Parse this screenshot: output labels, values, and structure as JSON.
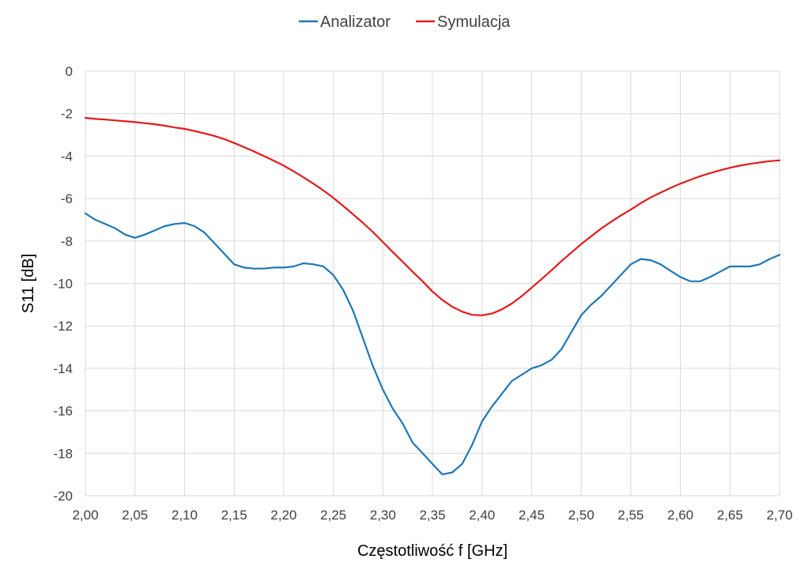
{
  "chart_data": {
    "type": "line",
    "title": "",
    "xlabel": "Częstotliwość f [GHz]",
    "ylabel": "S11 [dB]",
    "xlim": [
      2.0,
      2.7
    ],
    "ylim": [
      -20,
      0
    ],
    "x_ticks": [
      2.0,
      2.05,
      2.1,
      2.15,
      2.2,
      2.25,
      2.3,
      2.35,
      2.4,
      2.45,
      2.5,
      2.55,
      2.6,
      2.65,
      2.7
    ],
    "x_tick_labels": [
      "2,00",
      "2,05",
      "2,10",
      "2,15",
      "2,20",
      "2,25",
      "2,30",
      "2,35",
      "2,40",
      "2,45",
      "2,50",
      "2,55",
      "2,60",
      "2,65",
      "2,70"
    ],
    "y_ticks": [
      0,
      -2,
      -4,
      -6,
      -8,
      -10,
      -12,
      -14,
      -16,
      -18,
      -20
    ],
    "y_tick_labels": [
      "0",
      "-2",
      "-4",
      "-6",
      "-8",
      "-10",
      "-12",
      "-14",
      "-16",
      "-18",
      "-20"
    ],
    "grid": true,
    "legend_position": "top",
    "series": [
      {
        "name": "Analizator",
        "color": "#1f77b4",
        "points": [
          [
            2.0,
            -6.7
          ],
          [
            2.01,
            -7.0
          ],
          [
            2.02,
            -7.2
          ],
          [
            2.03,
            -7.4
          ],
          [
            2.04,
            -7.7
          ],
          [
            2.05,
            -7.85
          ],
          [
            2.06,
            -7.7
          ],
          [
            2.07,
            -7.5
          ],
          [
            2.08,
            -7.3
          ],
          [
            2.09,
            -7.2
          ],
          [
            2.1,
            -7.15
          ],
          [
            2.11,
            -7.3
          ],
          [
            2.12,
            -7.6
          ],
          [
            2.13,
            -8.1
          ],
          [
            2.14,
            -8.6
          ],
          [
            2.15,
            -9.1
          ],
          [
            2.16,
            -9.25
          ],
          [
            2.17,
            -9.3
          ],
          [
            2.18,
            -9.3
          ],
          [
            2.19,
            -9.25
          ],
          [
            2.2,
            -9.25
          ],
          [
            2.21,
            -9.2
          ],
          [
            2.22,
            -9.05
          ],
          [
            2.23,
            -9.1
          ],
          [
            2.24,
            -9.2
          ],
          [
            2.25,
            -9.6
          ],
          [
            2.26,
            -10.3
          ],
          [
            2.27,
            -11.3
          ],
          [
            2.28,
            -12.6
          ],
          [
            2.29,
            -13.9
          ],
          [
            2.3,
            -15.0
          ],
          [
            2.31,
            -15.9
          ],
          [
            2.32,
            -16.6
          ],
          [
            2.33,
            -17.5
          ],
          [
            2.34,
            -18.0
          ],
          [
            2.35,
            -18.5
          ],
          [
            2.36,
            -19.0
          ],
          [
            2.37,
            -18.9
          ],
          [
            2.38,
            -18.5
          ],
          [
            2.39,
            -17.6
          ],
          [
            2.4,
            -16.5
          ],
          [
            2.41,
            -15.8
          ],
          [
            2.42,
            -15.2
          ],
          [
            2.43,
            -14.6
          ],
          [
            2.44,
            -14.3
          ],
          [
            2.45,
            -14.0
          ],
          [
            2.46,
            -13.85
          ],
          [
            2.47,
            -13.6
          ],
          [
            2.48,
            -13.1
          ],
          [
            2.49,
            -12.3
          ],
          [
            2.5,
            -11.5
          ],
          [
            2.51,
            -11.0
          ],
          [
            2.52,
            -10.6
          ],
          [
            2.53,
            -10.1
          ],
          [
            2.54,
            -9.6
          ],
          [
            2.55,
            -9.1
          ],
          [
            2.56,
            -8.85
          ],
          [
            2.57,
            -8.9
          ],
          [
            2.58,
            -9.1
          ],
          [
            2.59,
            -9.4
          ],
          [
            2.6,
            -9.7
          ],
          [
            2.61,
            -9.9
          ],
          [
            2.62,
            -9.9
          ],
          [
            2.63,
            -9.7
          ],
          [
            2.64,
            -9.45
          ],
          [
            2.65,
            -9.2
          ],
          [
            2.66,
            -9.2
          ],
          [
            2.67,
            -9.2
          ],
          [
            2.68,
            -9.1
          ],
          [
            2.69,
            -8.85
          ],
          [
            2.7,
            -8.65
          ]
        ]
      },
      {
        "name": "Symulacja",
        "color": "#e31a1c",
        "points": [
          [
            2.0,
            -2.2
          ],
          [
            2.01,
            -2.25
          ],
          [
            2.02,
            -2.28
          ],
          [
            2.03,
            -2.32
          ],
          [
            2.04,
            -2.36
          ],
          [
            2.05,
            -2.4
          ],
          [
            2.06,
            -2.45
          ],
          [
            2.07,
            -2.5
          ],
          [
            2.08,
            -2.57
          ],
          [
            2.09,
            -2.65
          ],
          [
            2.1,
            -2.72
          ],
          [
            2.11,
            -2.82
          ],
          [
            2.12,
            -2.93
          ],
          [
            2.13,
            -3.05
          ],
          [
            2.14,
            -3.2
          ],
          [
            2.15,
            -3.38
          ],
          [
            2.16,
            -3.58
          ],
          [
            2.17,
            -3.78
          ],
          [
            2.18,
            -4.0
          ],
          [
            2.19,
            -4.22
          ],
          [
            2.2,
            -4.45
          ],
          [
            2.21,
            -4.72
          ],
          [
            2.22,
            -5.0
          ],
          [
            2.23,
            -5.3
          ],
          [
            2.24,
            -5.62
          ],
          [
            2.25,
            -5.97
          ],
          [
            2.26,
            -6.35
          ],
          [
            2.27,
            -6.75
          ],
          [
            2.28,
            -7.15
          ],
          [
            2.29,
            -7.58
          ],
          [
            2.3,
            -8.05
          ],
          [
            2.31,
            -8.52
          ],
          [
            2.32,
            -8.98
          ],
          [
            2.33,
            -9.45
          ],
          [
            2.34,
            -9.9
          ],
          [
            2.35,
            -10.38
          ],
          [
            2.36,
            -10.78
          ],
          [
            2.37,
            -11.1
          ],
          [
            2.38,
            -11.33
          ],
          [
            2.39,
            -11.48
          ],
          [
            2.4,
            -11.5
          ],
          [
            2.41,
            -11.42
          ],
          [
            2.42,
            -11.22
          ],
          [
            2.43,
            -10.95
          ],
          [
            2.44,
            -10.6
          ],
          [
            2.45,
            -10.2
          ],
          [
            2.46,
            -9.8
          ],
          [
            2.47,
            -9.38
          ],
          [
            2.48,
            -8.95
          ],
          [
            2.49,
            -8.55
          ],
          [
            2.5,
            -8.15
          ],
          [
            2.51,
            -7.78
          ],
          [
            2.52,
            -7.42
          ],
          [
            2.53,
            -7.1
          ],
          [
            2.54,
            -6.8
          ],
          [
            2.55,
            -6.52
          ],
          [
            2.56,
            -6.22
          ],
          [
            2.57,
            -5.95
          ],
          [
            2.58,
            -5.72
          ],
          [
            2.59,
            -5.5
          ],
          [
            2.6,
            -5.3
          ],
          [
            2.61,
            -5.12
          ],
          [
            2.62,
            -4.95
          ],
          [
            2.63,
            -4.8
          ],
          [
            2.64,
            -4.67
          ],
          [
            2.65,
            -4.55
          ],
          [
            2.66,
            -4.45
          ],
          [
            2.67,
            -4.37
          ],
          [
            2.68,
            -4.3
          ],
          [
            2.69,
            -4.24
          ],
          [
            2.7,
            -4.2
          ]
        ]
      }
    ]
  }
}
